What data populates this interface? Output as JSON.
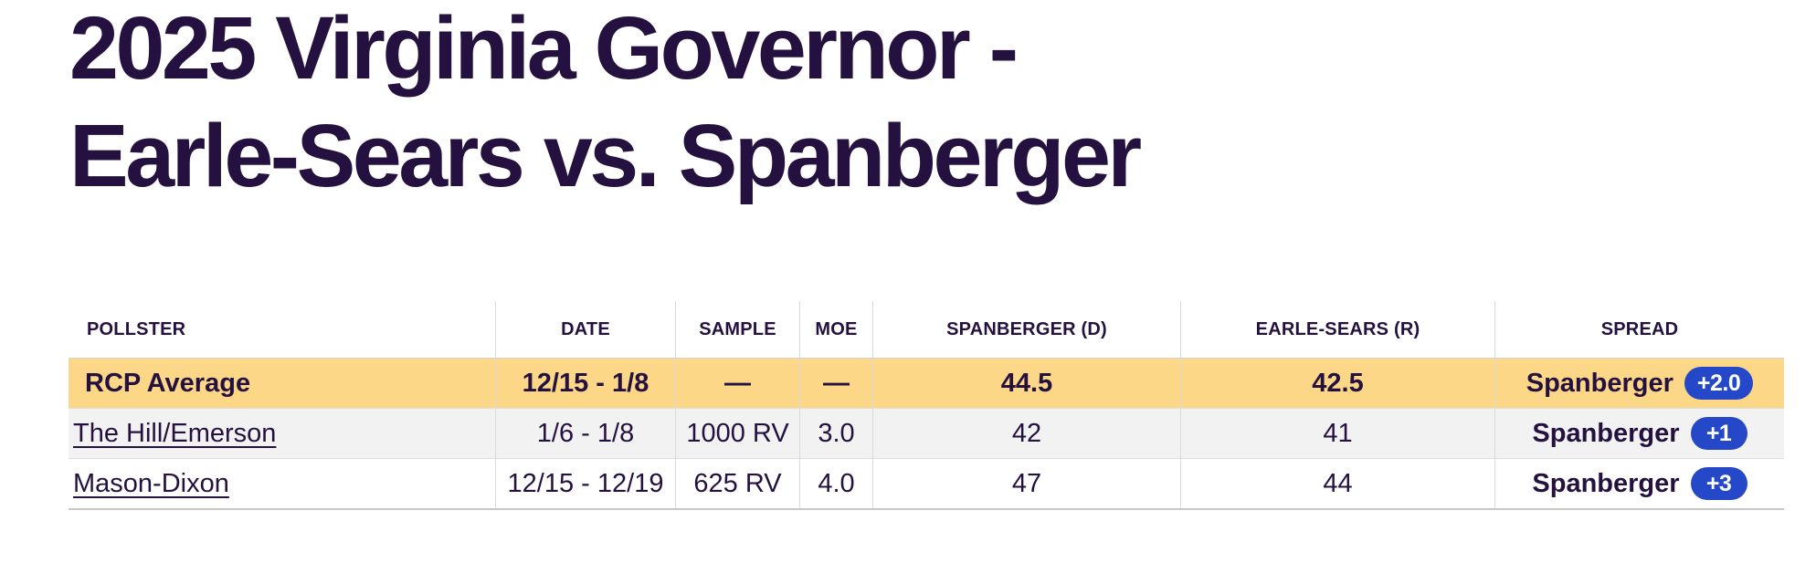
{
  "header": {
    "title_line1": "2025 Virginia Governor -",
    "title_line2": "Earle-Sears vs. Spanberger"
  },
  "table": {
    "columns": [
      {
        "label": "POLLSTER"
      },
      {
        "label": "DATE"
      },
      {
        "label": "SAMPLE"
      },
      {
        "label": "MOE"
      },
      {
        "label": "SPANBERGER (D)"
      },
      {
        "label": "EARLE-SEARS (R)"
      },
      {
        "label": "SPREAD"
      }
    ],
    "rows": [
      {
        "pollster": "RCP Average",
        "date": "12/15 - 1/8",
        "sample": "—",
        "moe": "—",
        "spanberger": "44.5",
        "earle_sears": "42.5",
        "spread_leader": "Spanberger",
        "spread_margin": "+2.0"
      },
      {
        "pollster": "The Hill/Emerson",
        "date": "1/6 - 1/8",
        "sample": "1000 RV",
        "moe": "3.0",
        "spanberger": "42",
        "earle_sears": "41",
        "spread_leader": "Spanberger",
        "spread_margin": "+1"
      },
      {
        "pollster": "Mason-Dixon",
        "date": "12/15 - 12/19",
        "sample": "625 RV",
        "moe": "4.0",
        "spanberger": "47",
        "earle_sears": "44",
        "spread_leader": "Spanberger",
        "spread_margin": "+3"
      }
    ]
  },
  "colors": {
    "title_text": "#241140",
    "average_row_bg": "#FCD787",
    "alt_row_bg": "#F2F2F3",
    "badge_bg": "#2448C8",
    "badge_text": "#FFFFFF",
    "divider": "#DADADA"
  }
}
